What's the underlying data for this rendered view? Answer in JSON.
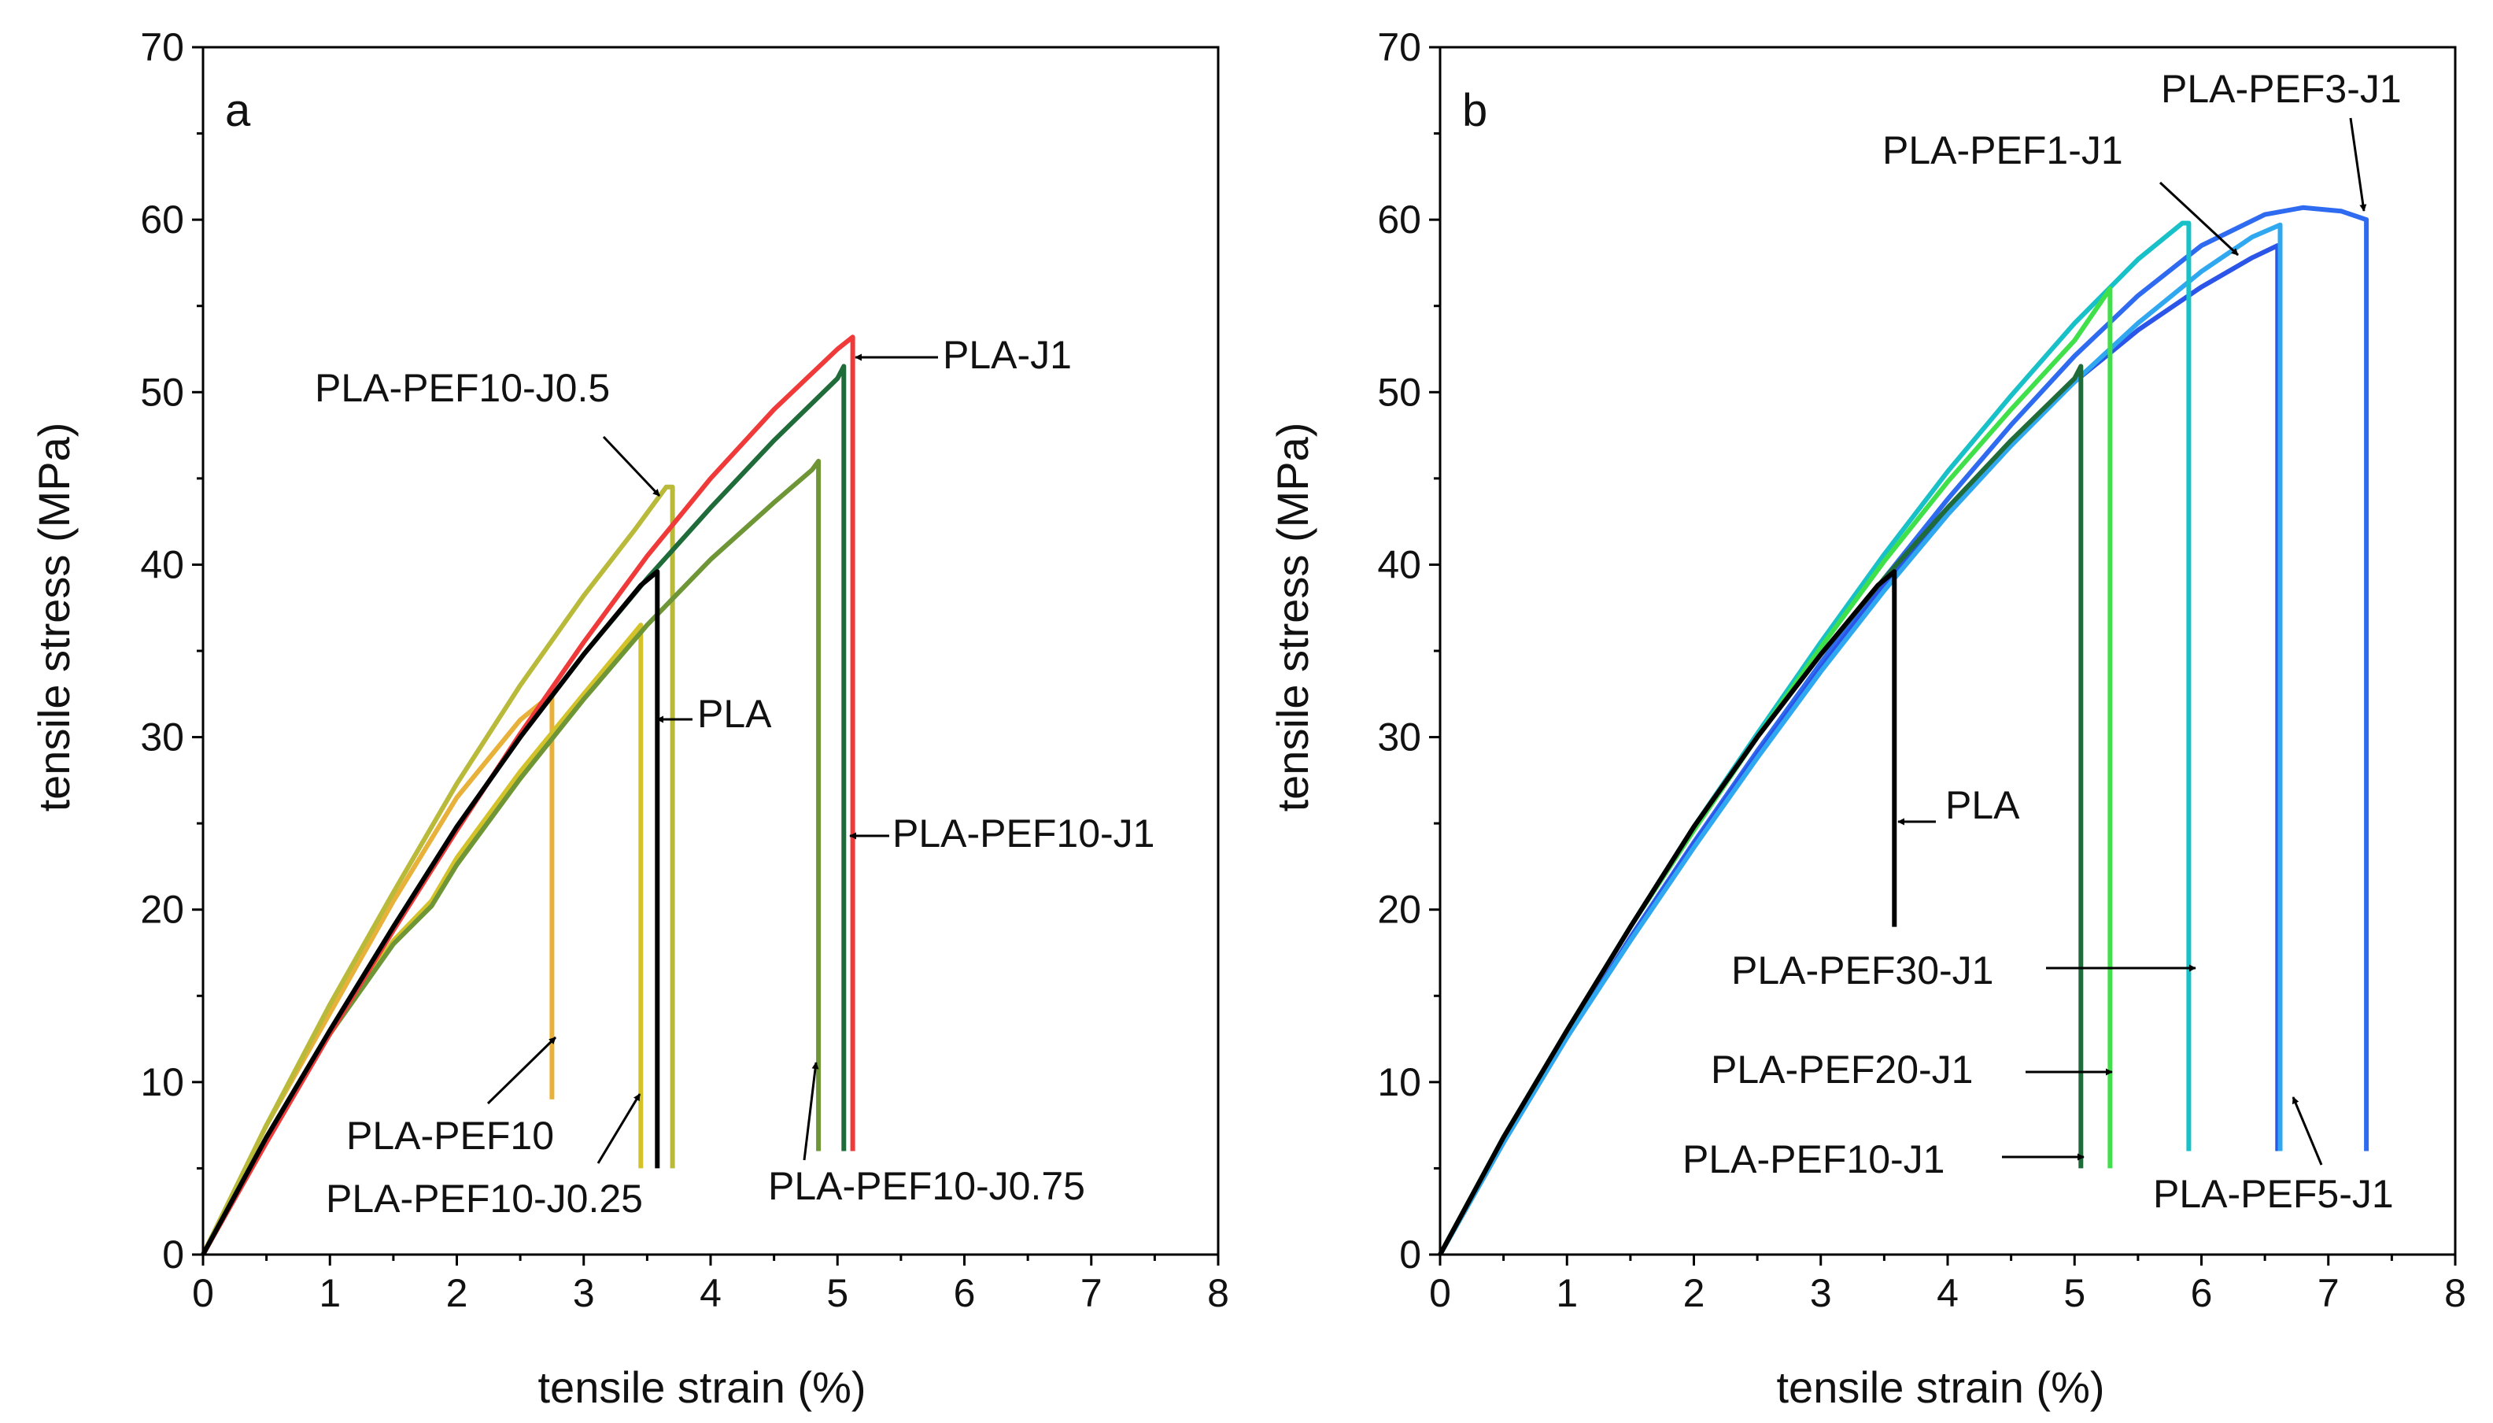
{
  "figure": {
    "panels": [
      "a",
      "b"
    ]
  },
  "chart_data": [
    {
      "type": "line",
      "panel_label": "a",
      "xlabel": "tensile strain (%)",
      "ylabel": "tensile stress (MPa)",
      "xlim": [
        0,
        8
      ],
      "ylim": [
        0,
        70
      ],
      "xticks": [
        0,
        1,
        2,
        3,
        4,
        5,
        6,
        7,
        8
      ],
      "yticks": [
        0,
        10,
        20,
        30,
        40,
        50,
        60,
        70
      ],
      "series": [
        {
          "name": "PLA-PEF10",
          "color": "#E8B13A",
          "points": [
            [
              0,
              0
            ],
            [
              0.5,
              7.5
            ],
            [
              1,
              14
            ],
            [
              1.5,
              20.5
            ],
            [
              2,
              26.5
            ],
            [
              2.5,
              31
            ],
            [
              2.75,
              32.5
            ]
          ],
          "drop_to": 9
        },
        {
          "name": "PLA-PEF10-J0.25",
          "color": "#D4C22A",
          "points": [
            [
              0,
              0
            ],
            [
              0.5,
              6.8
            ],
            [
              1,
              12.8
            ],
            [
              1.5,
              18.2
            ],
            [
              1.8,
              20.5
            ],
            [
              2,
              23
            ],
            [
              2.5,
              28
            ],
            [
              3,
              32.5
            ],
            [
              3.45,
              36.5
            ]
          ],
          "drop_to": 5
        },
        {
          "name": "PLA-PEF10-J0.5",
          "color": "#B9B93A",
          "points": [
            [
              0,
              0
            ],
            [
              0.5,
              7.5
            ],
            [
              1,
              14.5
            ],
            [
              1.5,
              21
            ],
            [
              2,
              27.3
            ],
            [
              2.5,
              33
            ],
            [
              3,
              38.2
            ],
            [
              3.4,
              42
            ],
            [
              3.65,
              44.5
            ],
            [
              3.7,
              44.5
            ]
          ],
          "drop_to": 5
        },
        {
          "name": "PLA",
          "color": "#000000",
          "points": [
            [
              0,
              0
            ],
            [
              0.5,
              6.8
            ],
            [
              1,
              13
            ],
            [
              1.5,
              19
            ],
            [
              2,
              24.8
            ],
            [
              2.5,
              30
            ],
            [
              3,
              34.8
            ],
            [
              3.45,
              38.8
            ],
            [
              3.58,
              39.6
            ]
          ],
          "drop_to": 5
        },
        {
          "name": "PLA-J1",
          "color": "#F03A3A",
          "points": [
            [
              0,
              0
            ],
            [
              0.5,
              6.5
            ],
            [
              1,
              12.8
            ],
            [
              1.5,
              18.8
            ],
            [
              2,
              24.6
            ],
            [
              2.5,
              30.2
            ],
            [
              3,
              35.5
            ],
            [
              3.5,
              40.5
            ],
            [
              4,
              45
            ],
            [
              4.5,
              49
            ],
            [
              5,
              52.5
            ],
            [
              5.12,
              53.2
            ]
          ],
          "drop_to": 6
        },
        {
          "name": "PLA-PEF10-J1",
          "color": "#1F6B3A",
          "points": [
            [
              0,
              0
            ],
            [
              0.5,
              6.8
            ],
            [
              1,
              13
            ],
            [
              1.5,
              19
            ],
            [
              2,
              24.8
            ],
            [
              2.5,
              30
            ],
            [
              3,
              34.8
            ],
            [
              3.5,
              39.2
            ],
            [
              4,
              43.3
            ],
            [
              4.5,
              47.2
            ],
            [
              5,
              50.8
            ],
            [
              5.05,
              51.5
            ]
          ],
          "drop_to": 6
        },
        {
          "name": "PLA-PEF10-J0.75",
          "color": "#6E9636",
          "points": [
            [
              0,
              0
            ],
            [
              0.5,
              6.8
            ],
            [
              1,
              12.8
            ],
            [
              1.5,
              18
            ],
            [
              1.8,
              20.2
            ],
            [
              2,
              22.6
            ],
            [
              2.5,
              27.6
            ],
            [
              3,
              32.2
            ],
            [
              3.5,
              36.5
            ],
            [
              4,
              40.3
            ],
            [
              4.5,
              43.6
            ],
            [
              4.8,
              45.5
            ],
            [
              4.85,
              46
            ]
          ],
          "drop_to": 6
        }
      ],
      "annotations": [
        {
          "text": "PLA-J1",
          "series": "PLA-J1"
        },
        {
          "text": "PLA-PEF10-J0.5",
          "series": "PLA-PEF10-J0.5"
        },
        {
          "text": "PLA",
          "series": "PLA"
        },
        {
          "text": "PLA-PEF10-J1",
          "series": "PLA-PEF10-J1"
        },
        {
          "text": "PLA-PEF10",
          "series": "PLA-PEF10"
        },
        {
          "text": "PLA-PEF10-J0.25",
          "series": "PLA-PEF10-J0.25"
        },
        {
          "text": "PLA-PEF10-J0.75",
          "series": "PLA-PEF10-J0.75"
        }
      ]
    },
    {
      "type": "line",
      "panel_label": "b",
      "xlabel": "tensile strain (%)",
      "ylabel": "tensile stress (MPa)",
      "xlim": [
        0,
        8
      ],
      "ylim": [
        0,
        70
      ],
      "xticks": [
        0,
        1,
        2,
        3,
        4,
        5,
        6,
        7,
        8
      ],
      "yticks": [
        0,
        10,
        20,
        30,
        40,
        50,
        60,
        70
      ],
      "series": [
        {
          "name": "PLA",
          "color": "#000000",
          "points": [
            [
              0,
              0
            ],
            [
              0.5,
              6.8
            ],
            [
              1,
              13
            ],
            [
              1.5,
              19
            ],
            [
              2,
              24.8
            ],
            [
              2.5,
              30
            ],
            [
              3,
              34.8
            ],
            [
              3.45,
              38.8
            ],
            [
              3.58,
              39.6
            ]
          ],
          "drop_to": 19
        },
        {
          "name": "PLA-PEF10-J1",
          "color": "#1F6B3A",
          "points": [
            [
              0,
              0
            ],
            [
              0.5,
              6.8
            ],
            [
              1,
              13
            ],
            [
              1.5,
              19
            ],
            [
              2,
              24.8
            ],
            [
              2.5,
              30
            ],
            [
              3,
              34.8
            ],
            [
              3.5,
              39.2
            ],
            [
              4,
              43.3
            ],
            [
              4.5,
              47.2
            ],
            [
              5,
              50.8
            ],
            [
              5.05,
              51.5
            ]
          ],
          "drop_to": 5
        },
        {
          "name": "PLA-PEF20-J1",
          "color": "#3FE04A",
          "points": [
            [
              0,
              0
            ],
            [
              0.5,
              6.8
            ],
            [
              1,
              13
            ],
            [
              1.5,
              19
            ],
            [
              2,
              24.6
            ],
            [
              2.5,
              30
            ],
            [
              3,
              35.2
            ],
            [
              3.5,
              40.2
            ],
            [
              4,
              44.8
            ],
            [
              4.5,
              49
            ],
            [
              5,
              53
            ],
            [
              5.28,
              56
            ]
          ],
          "drop_to": 5
        },
        {
          "name": "PLA-PEF30-J1",
          "color": "#18C0C8",
          "points": [
            [
              0,
              0
            ],
            [
              0.5,
              6.8
            ],
            [
              1,
              13
            ],
            [
              1.5,
              19
            ],
            [
              2,
              24.8
            ],
            [
              2.5,
              30.2
            ],
            [
              3,
              35.5
            ],
            [
              3.5,
              40.6
            ],
            [
              4,
              45.4
            ],
            [
              4.5,
              49.8
            ],
            [
              5,
              54
            ],
            [
              5.5,
              57.7
            ],
            [
              5.85,
              59.8
            ],
            [
              5.9,
              59.8
            ]
          ],
          "drop_to": 6
        },
        {
          "name": "PLA-PEF5-J1",
          "color": "#2FA8F0",
          "points": [
            [
              0,
              0
            ],
            [
              0.5,
              6.5
            ],
            [
              1,
              12.6
            ],
            [
              1.5,
              18.2
            ],
            [
              2,
              23.6
            ],
            [
              2.5,
              28.8
            ],
            [
              3,
              33.8
            ],
            [
              3.5,
              38.5
            ],
            [
              4,
              42.9
            ],
            [
              4.5,
              46.9
            ],
            [
              5,
              50.6
            ],
            [
              5.5,
              54
            ],
            [
              6,
              57
            ],
            [
              6.4,
              59
            ],
            [
              6.62,
              59.7
            ]
          ],
          "drop_to": 6
        },
        {
          "name": "PLA-PEF1-J1",
          "color": "#2A55E8",
          "points": [
            [
              0,
              0
            ],
            [
              0.5,
              6.5
            ],
            [
              1,
              12.6
            ],
            [
              1.5,
              18.3
            ],
            [
              2,
              23.8
            ],
            [
              2.5,
              29
            ],
            [
              3,
              34
            ],
            [
              3.5,
              38.8
            ],
            [
              4,
              43.2
            ],
            [
              4.5,
              47.1
            ],
            [
              5,
              50.6
            ],
            [
              5.5,
              53.6
            ],
            [
              6,
              56.1
            ],
            [
              6.4,
              57.8
            ],
            [
              6.6,
              58.5
            ]
          ],
          "drop_to": 6
        },
        {
          "name": "PLA-PEF3-J1",
          "color": "#2F6BF0",
          "points": [
            [
              0,
              0
            ],
            [
              0.5,
              6.5
            ],
            [
              1,
              12.6
            ],
            [
              1.5,
              18.4
            ],
            [
              2,
              23.9
            ],
            [
              2.5,
              29.2
            ],
            [
              3,
              34.3
            ],
            [
              3.5,
              39.2
            ],
            [
              4,
              43.8
            ],
            [
              4.5,
              48.1
            ],
            [
              5,
              52.1
            ],
            [
              5.5,
              55.6
            ],
            [
              6,
              58.5
            ],
            [
              6.5,
              60.3
            ],
            [
              6.8,
              60.7
            ],
            [
              7.1,
              60.5
            ],
            [
              7.3,
              60
            ]
          ],
          "drop_to": 6
        }
      ],
      "annotations": [
        {
          "text": "PLA-PEF3-J1",
          "series": "PLA-PEF3-J1"
        },
        {
          "text": "PLA-PEF1-J1",
          "series": "PLA-PEF1-J1"
        },
        {
          "text": "PLA",
          "series": "PLA"
        },
        {
          "text": "PLA-PEF30-J1",
          "series": "PLA-PEF30-J1"
        },
        {
          "text": "PLA-PEF20-J1",
          "series": "PLA-PEF20-J1"
        },
        {
          "text": "PLA-PEF10-J1",
          "series": "PLA-PEF10-J1"
        },
        {
          "text": "PLA-PEF5-J1",
          "series": "PLA-PEF5-J1"
        }
      ]
    }
  ]
}
